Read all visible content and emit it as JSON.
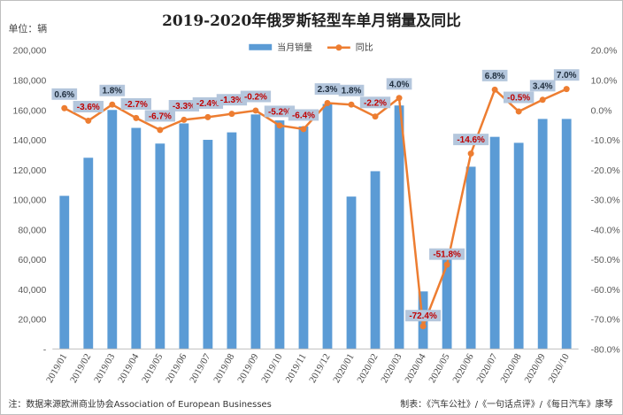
{
  "chart_data": {
    "type": "bar+line",
    "title": "2019-2020年俄罗斯轻型车单月销量及同比",
    "unit_label": "单位：辆",
    "categories": [
      "2019/01",
      "2019/02",
      "2019/03",
      "2019/04",
      "2019/05",
      "2019/06",
      "2019/07",
      "2019/08",
      "2019/09",
      "2019/10",
      "2019/11",
      "2019/12",
      "2020/01",
      "2020/02",
      "2020/03",
      "2020/04",
      "2020/05",
      "2020/06",
      "2020/07",
      "2020/08",
      "2020/09",
      "2020/10"
    ],
    "series": [
      {
        "name": "当月销量",
        "type": "bar",
        "axis": "left",
        "color": "#5b9bd5",
        "values": [
          102500,
          128000,
          160000,
          148000,
          137500,
          151000,
          140000,
          145000,
          157000,
          153000,
          149000,
          164000,
          102000,
          119000,
          163000,
          38500,
          66000,
          122000,
          142000,
          138000,
          154000,
          154000
        ]
      },
      {
        "name": "同比",
        "type": "line",
        "axis": "right",
        "color": "#ed7d31",
        "values": [
          0.6,
          -3.6,
          1.8,
          -2.7,
          -6.7,
          -3.3,
          -2.4,
          -1.3,
          -0.2,
          -5.2,
          -6.4,
          2.3,
          1.8,
          -2.2,
          4.0,
          -72.4,
          -51.8,
          -14.6,
          6.8,
          -0.5,
          3.4,
          7.0
        ],
        "labels": [
          "0.6%",
          "-3.6%",
          "1.8%",
          "-2.7%",
          "-6.7%",
          "-3.3%",
          "-2.4%",
          "-1.3%",
          "-0.2%",
          "-5.2%",
          "-6.4%",
          "2.3%",
          "1.8%",
          "-2.2%",
          "4.0%",
          "-72.4%",
          "-51.8%",
          "-14.6%",
          "6.8%",
          "-0.5%",
          "3.4%",
          "7.0%"
        ]
      }
    ],
    "y_left": {
      "min": 0,
      "max": 200000,
      "ticks": [
        0,
        20000,
        40000,
        60000,
        80000,
        100000,
        120000,
        140000,
        160000,
        180000,
        200000
      ],
      "tick_labels": [
        "-",
        "20,000",
        "40,000",
        "60,000",
        "80,000",
        "100,000",
        "120,000",
        "140,000",
        "160,000",
        "180,000",
        "200,000"
      ]
    },
    "y_right": {
      "min": -80,
      "max": 20,
      "ticks": [
        20,
        10,
        0,
        -10,
        -20,
        -30,
        -40,
        -50,
        -60,
        -70,
        -80
      ],
      "tick_labels": [
        "20.0%",
        "10.0%",
        "0.0%",
        "-10.0%",
        "-20.0%",
        "-30.0%",
        "-40.0%",
        "-50.0%",
        "-60.0%",
        "-70.0%",
        "-80.0%"
      ]
    },
    "legend_position": "top",
    "grid": false,
    "label_box_color": "#b4c6dc",
    "label_positive_color": "#1f2d3d",
    "label_negative_color": "#c00000"
  },
  "footer": {
    "source": "注：数据来源欧洲商业协会Association of European Businesses",
    "credit": "制表：《汽车公社》/《一句话点评》/《每日汽车》康琴"
  }
}
